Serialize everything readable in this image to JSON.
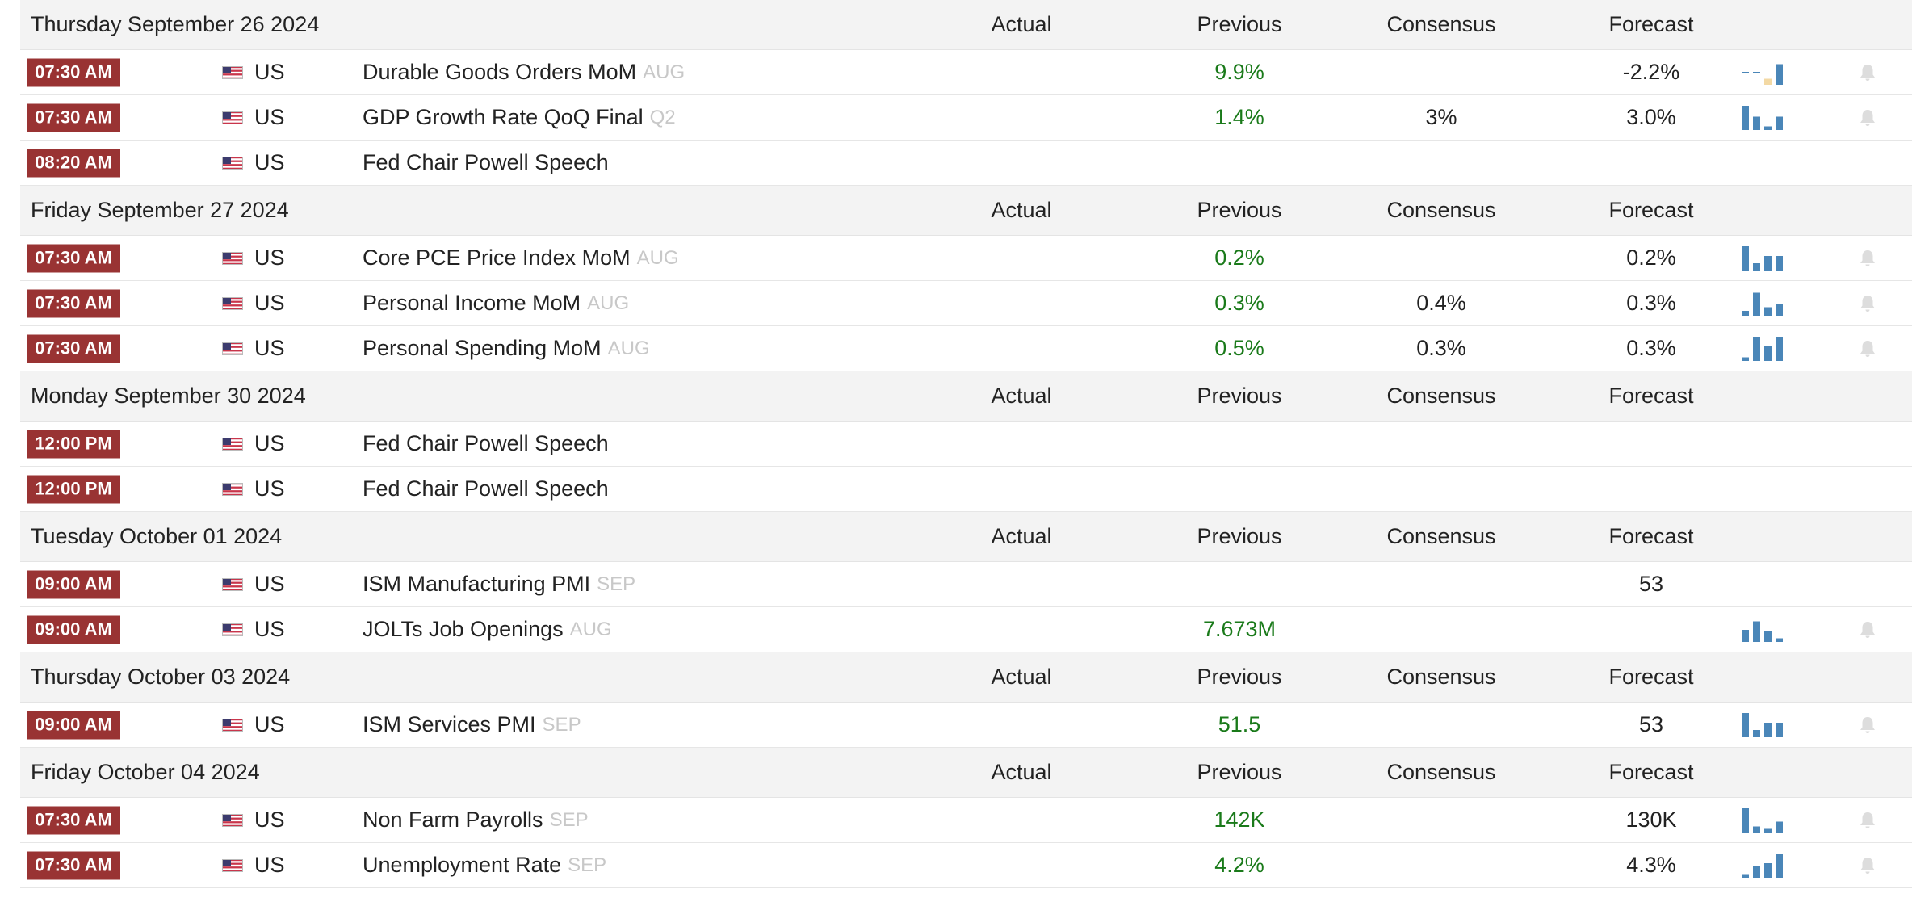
{
  "colors": {
    "time_badge": "#993333",
    "previous_value": "#1a7a1a",
    "sparkline_bar": "#4a86b8",
    "sparkline_highlight": "#f3d9a4",
    "header_bg": "#f3f3f3"
  },
  "columns": {
    "actual": "Actual",
    "previous": "Previous",
    "consensus": "Consensus",
    "forecast": "Forecast"
  },
  "days": [
    {
      "date": "Thursday September 26 2024",
      "events": [
        {
          "time": "07:30 AM",
          "country": "US",
          "event": "Durable Goods Orders MoM",
          "period": "AUG",
          "actual": "",
          "previous": "9.9%",
          "consensus": "",
          "forecast": "-2.2%",
          "spark": [
            0.1,
            0.1,
            0.25,
            0.85
          ],
          "spark_type": "dash",
          "bell": true
        },
        {
          "time": "07:30 AM",
          "country": "US",
          "event": "GDP Growth Rate QoQ Final",
          "period": "Q2",
          "actual": "",
          "previous": "1.4%",
          "consensus": "3%",
          "forecast": "3.0%",
          "spark": [
            1.0,
            0.55,
            0.15,
            0.55
          ],
          "spark_type": "bar",
          "bell": true
        },
        {
          "time": "08:20 AM",
          "country": "US",
          "event": "Fed Chair Powell Speech",
          "period": "",
          "actual": "",
          "previous": "",
          "consensus": "",
          "forecast": "",
          "spark": [],
          "spark_type": "none",
          "bell": false
        }
      ]
    },
    {
      "date": "Friday September 27 2024",
      "events": [
        {
          "time": "07:30 AM",
          "country": "US",
          "event": "Core PCE Price Index MoM",
          "period": "AUG",
          "actual": "",
          "previous": "0.2%",
          "consensus": "",
          "forecast": "0.2%",
          "spark": [
            1.0,
            0.3,
            0.6,
            0.6
          ],
          "spark_type": "bar",
          "bell": true
        },
        {
          "time": "07:30 AM",
          "country": "US",
          "event": "Personal Income MoM",
          "period": "AUG",
          "actual": "",
          "previous": "0.3%",
          "consensus": "0.4%",
          "forecast": "0.3%",
          "spark": [
            0.2,
            0.95,
            0.35,
            0.5
          ],
          "spark_type": "bar",
          "bell": true
        },
        {
          "time": "07:30 AM",
          "country": "US",
          "event": "Personal Spending MoM",
          "period": "AUG",
          "actual": "",
          "previous": "0.5%",
          "consensus": "0.3%",
          "forecast": "0.3%",
          "spark": [
            0.15,
            1.0,
            0.6,
            1.0
          ],
          "spark_type": "bar",
          "bell": true
        }
      ]
    },
    {
      "date": "Monday September 30 2024",
      "events": [
        {
          "time": "12:00 PM",
          "country": "US",
          "event": "Fed Chair Powell Speech",
          "period": "",
          "actual": "",
          "previous": "",
          "consensus": "",
          "forecast": "",
          "spark": [],
          "spark_type": "none",
          "bell": false
        },
        {
          "time": "12:00 PM",
          "country": "US",
          "event": "Fed Chair Powell Speech",
          "period": "",
          "actual": "",
          "previous": "",
          "consensus": "",
          "forecast": "",
          "spark": [],
          "spark_type": "none",
          "bell": false
        }
      ]
    },
    {
      "date": "Tuesday October 01 2024",
      "events": [
        {
          "time": "09:00 AM",
          "country": "US",
          "event": "ISM Manufacturing PMI",
          "period": "SEP",
          "actual": "",
          "previous": "",
          "consensus": "",
          "forecast": "53",
          "spark": [],
          "spark_type": "none",
          "bell": false
        },
        {
          "time": "09:00 AM",
          "country": "US",
          "event": "JOLTs Job Openings",
          "period": "AUG",
          "actual": "",
          "previous": "7.673M",
          "consensus": "",
          "forecast": "",
          "spark": [
            0.5,
            0.85,
            0.45,
            0.15
          ],
          "spark_type": "bar",
          "bell": true
        }
      ]
    },
    {
      "date": "Thursday October 03 2024",
      "events": [
        {
          "time": "09:00 AM",
          "country": "US",
          "event": "ISM Services PMI",
          "period": "SEP",
          "actual": "",
          "previous": "51.5",
          "consensus": "",
          "forecast": "53",
          "spark": [
            1.0,
            0.3,
            0.6,
            0.6
          ],
          "spark_type": "bar",
          "bell": true
        }
      ]
    },
    {
      "date": "Friday October 04 2024",
      "events": [
        {
          "time": "07:30 AM",
          "country": "US",
          "event": "Non Farm Payrolls",
          "period": "SEP",
          "actual": "",
          "previous": "142K",
          "consensus": "",
          "forecast": "130K",
          "spark": [
            1.0,
            0.25,
            0.15,
            0.45
          ],
          "spark_type": "bar",
          "bell": true
        },
        {
          "time": "07:30 AM",
          "country": "US",
          "event": "Unemployment Rate",
          "period": "SEP",
          "actual": "",
          "previous": "4.2%",
          "consensus": "",
          "forecast": "4.3%",
          "spark": [
            0.15,
            0.5,
            0.6,
            1.0
          ],
          "spark_type": "bar",
          "bell": true
        }
      ]
    }
  ]
}
